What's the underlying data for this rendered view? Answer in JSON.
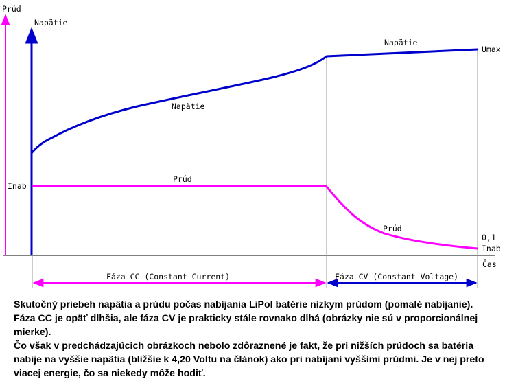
{
  "axes": {
    "current_axis_label": "Prúd",
    "voltage_axis_label": "Napätie",
    "time_axis_label": "Čas",
    "current_color": "#ff00ff",
    "voltage_color": "#0000cc"
  },
  "curves": {
    "voltage_label_lower": "Napätie",
    "voltage_label_upper": "Napätie",
    "voltage_max_label": "Umax",
    "current_label_left": "Prúd",
    "current_label_right": "Prúd",
    "current_charge_label": "Inab",
    "current_end_label_line1": "0,1",
    "current_end_label_line2": "Inab"
  },
  "phases": {
    "cc_label": "Fáza CC (Constant Current)",
    "cv_label": "Fáza CV (Constant Voltage)"
  },
  "caption": {
    "paragraph1": "Skutočný priebeh napätia a prúdu počas nabíjania LiPol batérie nízkym prúdom (pomalé nabíjanie). Fáza CC je opäť dlhšia, ale fáza CV je prakticky stále rovnako dlhá (obrázky nie sú v proporcionálnej mierke).",
    "paragraph2": "Čo však v predchádzajúcich obrázkoch nebolo zdôraznené je fakt, že pri nižších prúdoch sa batéria nabije na vyššie napätia (bližšie k 4,20 Voltu na článok) ako pri nabíjaní vyššími prúdmi. Je v nej preto viacej energie, čo sa niekedy môže hodiť."
  }
}
